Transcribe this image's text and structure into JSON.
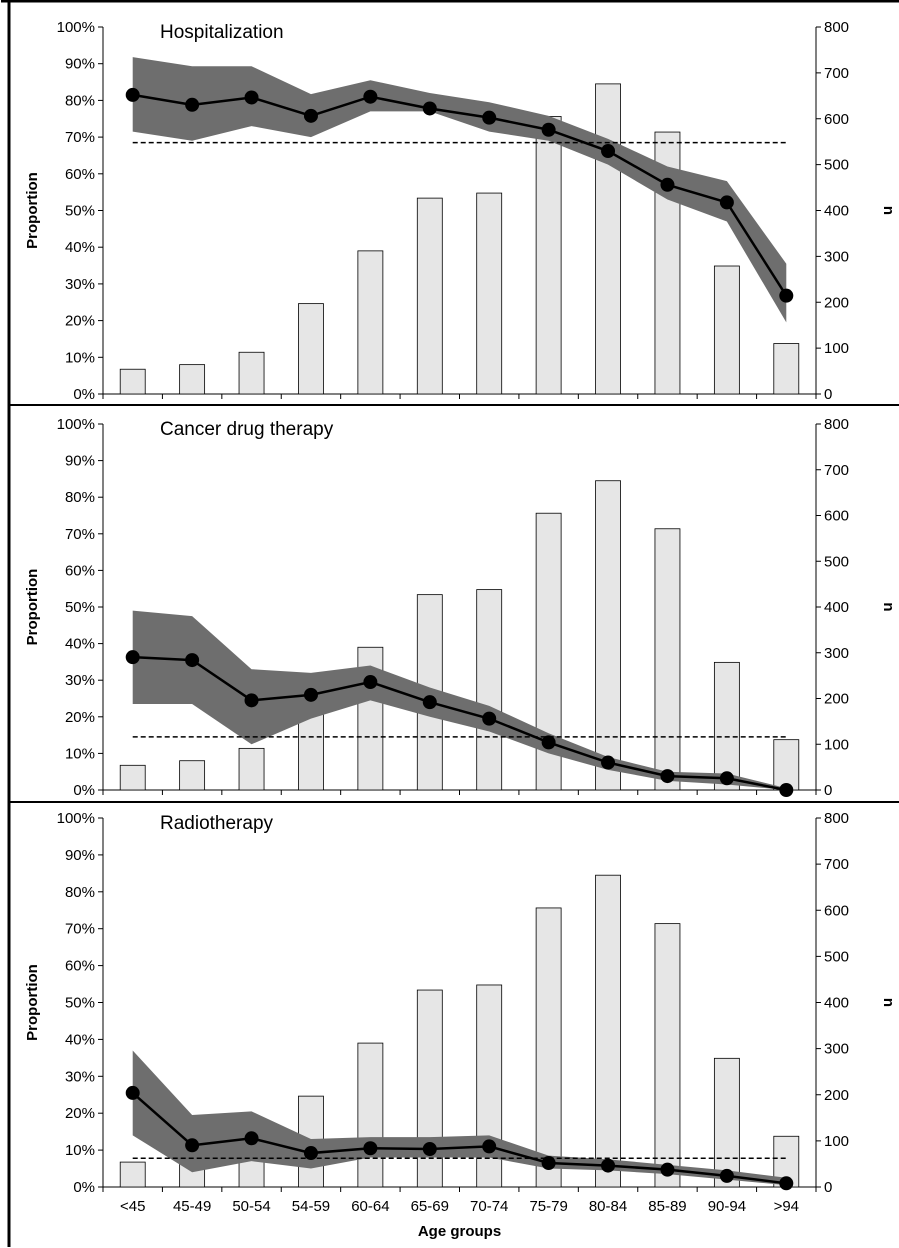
{
  "chart_data": [
    {
      "type": "bar",
      "title": "Hospitalization",
      "ylabel": "Proportion",
      "y2label": "n",
      "xlabel": "",
      "categories": [
        "<45",
        "45-49",
        "50-54",
        "54-59",
        "60-64",
        "65-69",
        "70-74",
        "75-79",
        "80-84",
        "85-89",
        "90-94",
        ">94"
      ],
      "ylim": [
        0,
        100
      ],
      "y2lim": [
        0,
        800
      ],
      "yticks": [
        "0%",
        "10%",
        "20%",
        "30%",
        "40%",
        "50%",
        "60%",
        "70%",
        "80%",
        "90%",
        "100%"
      ],
      "y2ticks": [
        "0",
        "100",
        "200",
        "300",
        "400",
        "500",
        "600",
        "700",
        "800"
      ],
      "bars_n": [
        54,
        64,
        91,
        197,
        312,
        427,
        438,
        605,
        676,
        571,
        279,
        110
      ],
      "proportion_pct": [
        81.5,
        78.8,
        80.8,
        75.8,
        81.0,
        77.8,
        75.3,
        72.0,
        66.2,
        57.0,
        52.2,
        26.8
      ],
      "ci_lower_pct": [
        71.5,
        69.0,
        73.0,
        70.0,
        77.0,
        77.0,
        71.5,
        69.0,
        62.5,
        53.0,
        47.0,
        19.5
      ],
      "ci_upper_pct": [
        91.8,
        89.3,
        89.3,
        81.7,
        85.5,
        82.0,
        79.5,
        75.8,
        69.5,
        62.0,
        58.0,
        35.5
      ],
      "reference_line_pct": 68.5,
      "colors": {
        "bar_fill": "#e6e6e6",
        "ci_band": "#6e6e6e",
        "line": "#000000"
      }
    },
    {
      "type": "bar",
      "title": "Cancer drug therapy",
      "ylabel": "Proportion",
      "y2label": "n",
      "xlabel": "",
      "categories": [
        "<45",
        "45-49",
        "50-54",
        "54-59",
        "60-64",
        "65-69",
        "70-74",
        "75-79",
        "80-84",
        "85-89",
        "90-94",
        ">94"
      ],
      "ylim": [
        0,
        100
      ],
      "y2lim": [
        0,
        800
      ],
      "yticks": [
        "0%",
        "10%",
        "20%",
        "30%",
        "40%",
        "50%",
        "60%",
        "70%",
        "80%",
        "90%",
        "100%"
      ],
      "y2ticks": [
        "0",
        "100",
        "200",
        "300",
        "400",
        "500",
        "600",
        "700",
        "800"
      ],
      "bars_n": [
        54,
        64,
        91,
        197,
        312,
        427,
        438,
        605,
        676,
        571,
        279,
        110
      ],
      "proportion_pct": [
        36.3,
        35.5,
        24.5,
        26.0,
        29.5,
        24.0,
        19.5,
        13.0,
        7.5,
        3.8,
        3.2,
        0.0
      ],
      "ci_lower_pct": [
        23.5,
        23.5,
        12.5,
        19.5,
        24.5,
        20.0,
        16.0,
        10.0,
        5.5,
        2.5,
        1.5,
        0.0
      ],
      "ci_upper_pct": [
        49.0,
        47.5,
        33.0,
        32.0,
        34.0,
        28.0,
        23.0,
        15.5,
        9.0,
        5.0,
        4.5,
        0.5
      ],
      "reference_line_pct": 14.5,
      "colors": {
        "bar_fill": "#e6e6e6",
        "ci_band": "#6e6e6e",
        "line": "#000000"
      }
    },
    {
      "type": "bar",
      "title": "Radiotherapy",
      "ylabel": "Proportion",
      "y2label": "n",
      "xlabel": "Age groups",
      "categories": [
        "<45",
        "45-49",
        "50-54",
        "54-59",
        "60-64",
        "65-69",
        "70-74",
        "75-79",
        "80-84",
        "85-89",
        "90-94",
        ">94"
      ],
      "ylim": [
        0,
        100
      ],
      "y2lim": [
        0,
        800
      ],
      "yticks": [
        "0%",
        "10%",
        "20%",
        "30%",
        "40%",
        "50%",
        "60%",
        "70%",
        "80%",
        "90%",
        "100%"
      ],
      "y2ticks": [
        "0",
        "100",
        "200",
        "300",
        "400",
        "500",
        "600",
        "700",
        "800"
      ],
      "bars_n": [
        54,
        64,
        91,
        197,
        312,
        427,
        438,
        605,
        676,
        571,
        279,
        110
      ],
      "proportion_pct": [
        25.5,
        11.3,
        13.2,
        9.2,
        10.5,
        10.3,
        11.0,
        6.5,
        5.8,
        4.7,
        3.0,
        1.0
      ],
      "ci_lower_pct": [
        14.0,
        4.0,
        7.0,
        5.0,
        8.0,
        8.0,
        8.0,
        5.0,
        4.5,
        3.5,
        2.0,
        0.5
      ],
      "ci_upper_pct": [
        37.0,
        19.5,
        20.5,
        13.0,
        13.5,
        13.5,
        14.0,
        8.5,
        7.5,
        6.0,
        4.5,
        2.5
      ],
      "reference_line_pct": 7.8,
      "colors": {
        "bar_fill": "#e6e6e6",
        "ci_band": "#6e6e6e",
        "line": "#000000"
      }
    }
  ]
}
